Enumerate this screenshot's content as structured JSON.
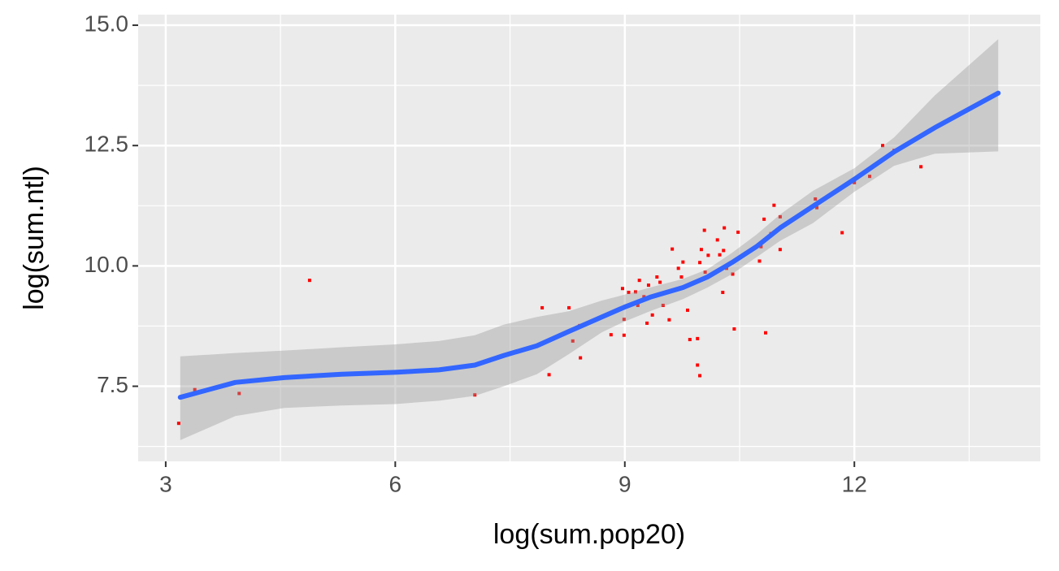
{
  "chart_data": {
    "type": "scatter",
    "x_label": "log(sum.pop20)",
    "y_label": "log(sum.ntl)",
    "xlim": [
      2.64,
      14.43
    ],
    "ylim": [
      5.94,
      15.22
    ],
    "xticks": [
      3,
      6,
      9,
      12
    ],
    "yticks": [
      7.5,
      {
        "value": 10,
        "label": "10.0"
      },
      12.5,
      {
        "value": 15,
        "label": "15.0"
      }
    ],
    "x_minor": [
      4.5,
      7.5,
      10.5,
      13.5
    ],
    "y_minor": [
      6.25,
      8.75,
      11.25,
      13.75
    ],
    "grid": true,
    "panel_color": "#ebebeb",
    "series": [
      {
        "type": "scatter",
        "color": "#ff0000",
        "x": [
          3.17,
          3.38,
          3.96,
          4.88,
          7.04,
          7.92,
          8.01,
          8.27,
          8.32,
          8.41,
          8.42,
          8.82,
          8.97,
          8.99,
          8.99,
          9.05,
          9.14,
          9.17,
          9.19,
          9.25,
          9.29,
          9.31,
          9.36,
          9.42,
          9.46,
          9.49,
          9.5,
          9.58,
          9.62,
          9.7,
          9.74,
          9.76,
          9.82,
          9.85,
          9.95,
          9.95,
          9.98,
          9.98,
          10.0,
          10.04,
          10.05,
          10.09,
          10.21,
          10.24,
          10.28,
          10.29,
          10.3,
          10.33,
          10.41,
          10.43,
          10.48,
          10.76,
          10.78,
          10.82,
          10.84,
          10.91,
          10.95,
          11.03,
          11.03,
          11.49,
          11.51,
          11.84,
          12.0,
          12.2,
          12.37,
          12.52,
          12.87,
          13.88
        ],
        "values": [
          6.73,
          7.43,
          7.35,
          9.7,
          7.32,
          9.13,
          7.74,
          9.13,
          8.44,
          8.76,
          8.09,
          8.57,
          9.53,
          8.89,
          8.56,
          9.45,
          9.46,
          9.18,
          9.7,
          9.36,
          8.81,
          9.6,
          8.98,
          9.77,
          9.66,
          9.43,
          9.18,
          8.88,
          10.35,
          9.95,
          9.77,
          10.08,
          9.08,
          8.47,
          8.49,
          7.94,
          10.07,
          7.72,
          10.34,
          10.74,
          9.87,
          10.22,
          10.54,
          10.23,
          9.45,
          10.32,
          10.79,
          9.95,
          9.83,
          8.69,
          10.7,
          10.1,
          10.4,
          10.97,
          8.61,
          10.67,
          11.26,
          11.02,
          10.34,
          11.39,
          11.21,
          10.69,
          11.73,
          11.86,
          12.5,
          12.4,
          12.06,
          13.59
        ]
      },
      {
        "type": "line",
        "color": "#3366ff",
        "band_color": "#999999",
        "x": [
          3.19,
          3.91,
          4.55,
          5.3,
          6.0,
          6.57,
          7.04,
          7.42,
          7.85,
          8.27,
          8.7,
          8.99,
          9.33,
          9.76,
          10.08,
          10.4,
          10.72,
          11.03,
          11.46,
          12.0,
          12.52,
          13.05,
          13.88
        ],
        "values": [
          7.27,
          7.58,
          7.68,
          7.75,
          7.79,
          7.84,
          7.94,
          8.14,
          8.34,
          8.64,
          8.94,
          9.14,
          9.35,
          9.55,
          9.77,
          10.07,
          10.4,
          10.79,
          11.24,
          11.8,
          12.37,
          12.87,
          13.59
        ],
        "upper": [
          8.12,
          8.19,
          8.24,
          8.31,
          8.37,
          8.44,
          8.56,
          8.78,
          8.94,
          9.06,
          9.28,
          9.4,
          9.55,
          9.73,
          9.93,
          10.27,
          10.65,
          11.07,
          11.56,
          12.03,
          12.67,
          13.54,
          14.71
        ],
        "lower": [
          6.38,
          6.88,
          7.05,
          7.1,
          7.13,
          7.2,
          7.3,
          7.5,
          7.75,
          8.17,
          8.62,
          8.84,
          9.06,
          9.31,
          9.55,
          9.83,
          10.18,
          10.52,
          10.89,
          11.54,
          12.08,
          12.33,
          12.38
        ]
      }
    ]
  }
}
